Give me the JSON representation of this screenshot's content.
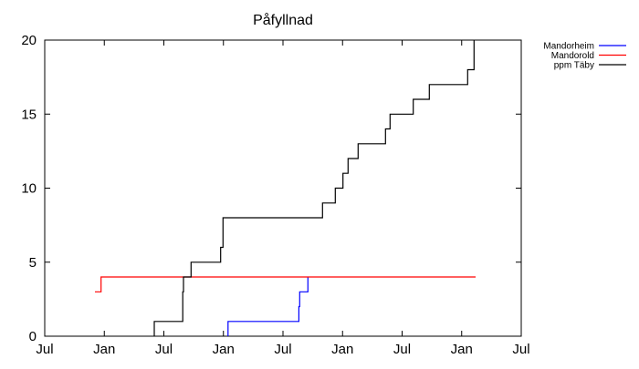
{
  "chart_data": {
    "type": "line",
    "title": "Påfyllnad",
    "xlabel": "",
    "ylabel": "",
    "xlim": [
      0,
      48
    ],
    "ylim": [
      0,
      20
    ],
    "x_unit": "months since first July tick",
    "xticks": [
      {
        "value": 0,
        "label": "Jul"
      },
      {
        "value": 6,
        "label": "Jan"
      },
      {
        "value": 12,
        "label": "Jul"
      },
      {
        "value": 18,
        "label": "Jan"
      },
      {
        "value": 24,
        "label": "Jul"
      },
      {
        "value": 30,
        "label": "Jan"
      },
      {
        "value": 36,
        "label": "Jul"
      },
      {
        "value": 42,
        "label": "Jan"
      },
      {
        "value": 48,
        "label": "Jul"
      }
    ],
    "yticks": [
      0,
      5,
      10,
      15,
      20
    ],
    "legend_position": "outside-top-right",
    "series": [
      {
        "name": "Mandorheim",
        "color": "#0000ff",
        "step": true,
        "points": [
          [
            18.46,
            0
          ],
          [
            18.46,
            1
          ],
          [
            25.6,
            1
          ],
          [
            25.6,
            2
          ],
          [
            25.68,
            2
          ],
          [
            25.68,
            3
          ],
          [
            26.51,
            3
          ],
          [
            26.51,
            4
          ]
        ]
      },
      {
        "name": "Mandorold",
        "color": "#ff0000",
        "step": true,
        "points": [
          [
            5.06,
            3
          ],
          [
            5.67,
            3
          ],
          [
            5.67,
            4
          ],
          [
            43.4,
            4
          ]
        ]
      },
      {
        "name": "ppm Täby",
        "color": "#000000",
        "step": true,
        "points": [
          [
            11.03,
            0
          ],
          [
            11.03,
            1
          ],
          [
            13.9,
            1
          ],
          [
            13.9,
            3
          ],
          [
            13.98,
            3
          ],
          [
            13.98,
            4
          ],
          [
            14.74,
            4
          ],
          [
            14.74,
            5
          ],
          [
            17.72,
            5
          ],
          [
            17.72,
            6
          ],
          [
            17.96,
            6
          ],
          [
            17.96,
            8
          ],
          [
            27.98,
            8
          ],
          [
            27.98,
            9
          ],
          [
            29.27,
            9
          ],
          [
            29.27,
            10
          ],
          [
            30.04,
            10
          ],
          [
            30.04,
            11
          ],
          [
            30.56,
            11
          ],
          [
            30.56,
            12
          ],
          [
            31.57,
            12
          ],
          [
            31.57,
            13
          ],
          [
            34.33,
            13
          ],
          [
            34.33,
            14
          ],
          [
            34.79,
            14
          ],
          [
            34.79,
            15
          ],
          [
            37.12,
            15
          ],
          [
            37.12,
            16
          ],
          [
            38.74,
            16
          ],
          [
            38.74,
            17
          ],
          [
            42.6,
            17
          ],
          [
            42.6,
            18
          ],
          [
            43.25,
            18
          ],
          [
            43.25,
            20
          ]
        ]
      }
    ]
  }
}
